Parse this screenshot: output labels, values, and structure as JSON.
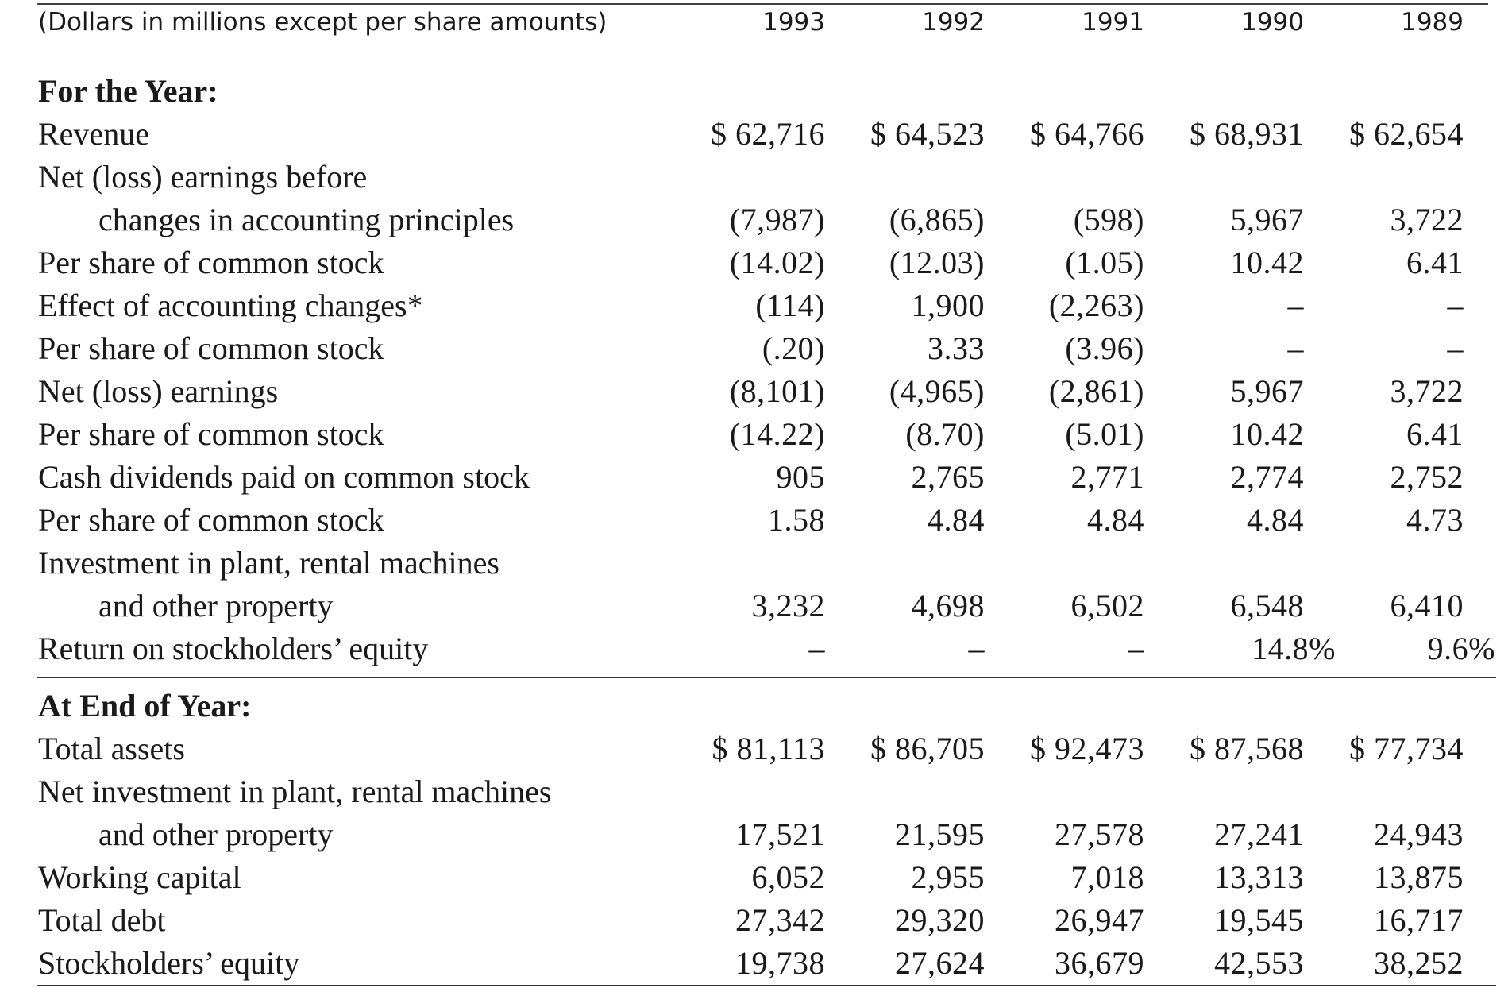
{
  "caption": "(Dollars in millions except per share amounts)",
  "years": [
    "1993",
    "1992",
    "1991",
    "1990",
    "1989"
  ],
  "section_year": {
    "heading": "For the Year:",
    "rows": [
      {
        "label": "Revenue",
        "values": [
          "$ 62,716",
          "$ 64,523",
          "$ 64,766",
          "$ 68,931",
          "$ 62,654"
        ]
      },
      {
        "label": "Net (loss) earnings before",
        "values": [
          "",
          "",
          "",
          "",
          ""
        ]
      },
      {
        "label": "changes in accounting principles",
        "values": [
          "(7,987)",
          "(6,865)",
          "(598)",
          "5,967",
          "3,722"
        ]
      },
      {
        "label": "Per share of common stock",
        "values": [
          "(14.02)",
          "(12.03)",
          "(1.05)",
          "10.42",
          "6.41"
        ]
      },
      {
        "label": "Effect of accounting changes*",
        "values": [
          "(114)",
          "1,900",
          "(2,263)",
          "–",
          "–"
        ]
      },
      {
        "label": "Per share of common stock",
        "values": [
          "(.20)",
          "3.33",
          "(3.96)",
          "–",
          "–"
        ]
      },
      {
        "label": "Net (loss) earnings",
        "values": [
          "(8,101)",
          "(4,965)",
          "(2,861)",
          "5,967",
          "3,722"
        ]
      },
      {
        "label": "Per share of common stock",
        "values": [
          "(14.22)",
          "(8.70)",
          "(5.01)",
          "10.42",
          "6.41"
        ]
      },
      {
        "label": "Cash dividends paid on common stock",
        "values": [
          "905",
          "2,765",
          "2,771",
          "2,774",
          "2,752"
        ]
      },
      {
        "label": "Per share of common stock",
        "values": [
          "1.58",
          "4.84",
          "4.84",
          "4.84",
          "4.73"
        ]
      },
      {
        "label": "Investment in plant, rental machines",
        "values": [
          "",
          "",
          "",
          "",
          ""
        ]
      },
      {
        "label": "and other property",
        "values": [
          "3,232",
          "4,698",
          "6,502",
          "6,548",
          "6,410"
        ]
      },
      {
        "label": "Return on stockholders’ equity",
        "values": [
          "–",
          "–",
          "–",
          "14.8%",
          "9.6%"
        ]
      }
    ]
  },
  "section_end": {
    "heading": "At End of Year:",
    "rows": [
      {
        "label": "Total assets",
        "values": [
          "$ 81,113",
          "$ 86,705",
          "$ 92,473",
          "$ 87,568",
          "$ 77,734"
        ]
      },
      {
        "label": "Net investment in plant, rental machines",
        "values": [
          "",
          "",
          "",
          "",
          ""
        ]
      },
      {
        "label": "and other property",
        "values": [
          "17,521",
          "21,595",
          "27,578",
          "27,241",
          "24,943"
        ]
      },
      {
        "label": "Working capital",
        "values": [
          "6,052",
          "2,955",
          "7,018",
          "13,313",
          "13,875"
        ]
      },
      {
        "label": "Total debt",
        "values": [
          "27,342",
          "29,320",
          "26,947",
          "19,545",
          "16,717"
        ]
      },
      {
        "label": "Stockholders’ equity",
        "values": [
          "19,738",
          "27,624",
          "36,679",
          "42,553",
          "38,252"
        ]
      }
    ]
  }
}
